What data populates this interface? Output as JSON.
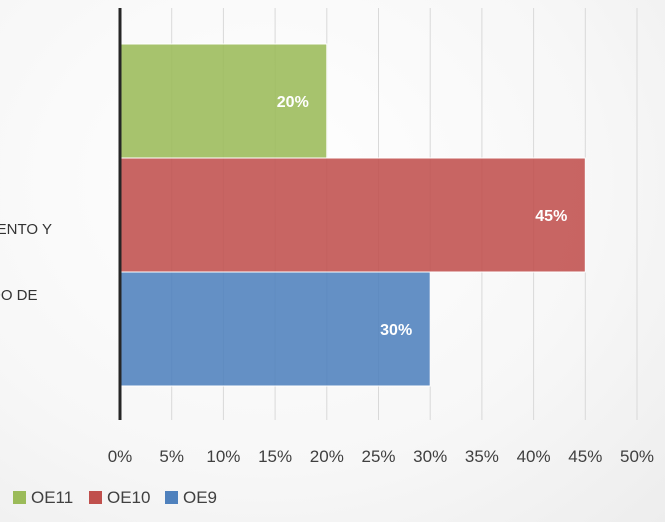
{
  "chart_data": {
    "type": "bar",
    "orientation": "horizontal",
    "category_label_lines": [
      "MIENTO Y",
      "ADO DE"
    ],
    "series": [
      {
        "name": "OE11",
        "value": 0.2,
        "label": "20%",
        "color": "#9bbb59"
      },
      {
        "name": "OE10",
        "value": 0.45,
        "label": "45%",
        "color": "#c0504d"
      },
      {
        "name": "OE9",
        "value": 0.3,
        "label": "30%",
        "color": "#4f81bd"
      }
    ],
    "x_ticks": [
      "0%",
      "5%",
      "10%",
      "15%",
      "20%",
      "25%",
      "30%",
      "35%",
      "40%",
      "45%",
      "50%"
    ],
    "xlim": [
      0,
      0.5
    ],
    "grid": true,
    "legend_position": "bottom-left",
    "legend": [
      {
        "name": "OE11",
        "color": "#9bbb59"
      },
      {
        "name": "OE10",
        "color": "#c0504d"
      },
      {
        "name": "OE9",
        "color": "#4f81bd"
      }
    ]
  }
}
